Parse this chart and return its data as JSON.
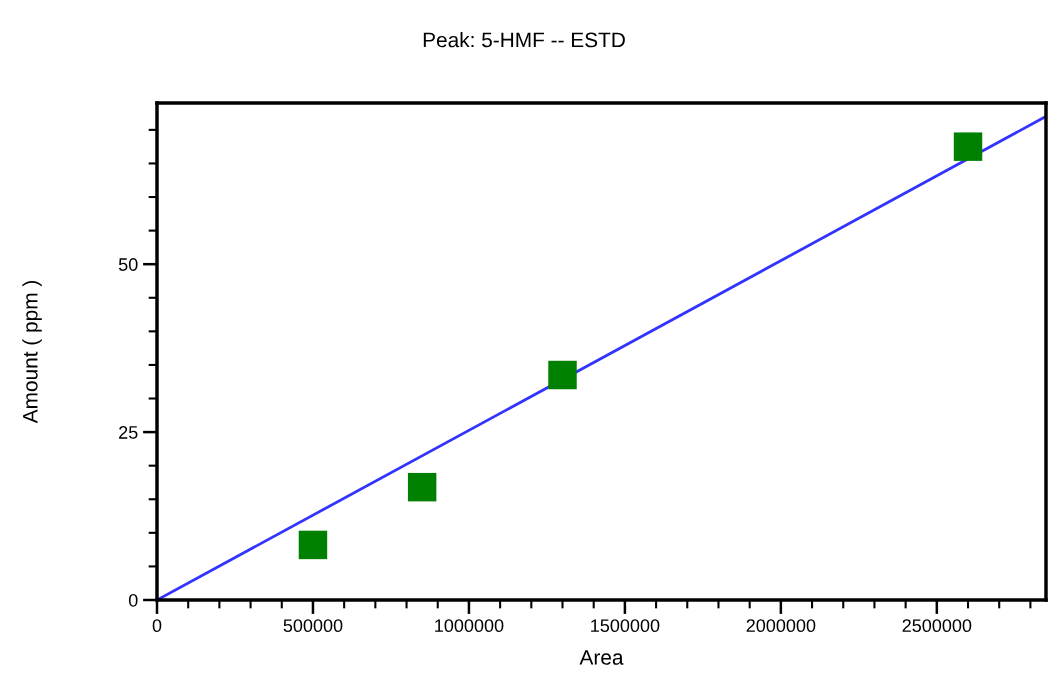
{
  "chart_data": {
    "type": "scatter",
    "title": "Peak: 5-HMF -- ESTD",
    "xlabel": "Area",
    "ylabel": "Amount ( ppm )",
    "series": [
      {
        "color": "#008000",
        "marker": "square",
        "x": [
          500000,
          850000,
          1300000,
          2600000
        ],
        "values": [
          8.2,
          16.8,
          33.5,
          67.5
        ]
      },
      {
        "type": "line",
        "color": "#3333ff",
        "marker": "none",
        "line_style": "solid",
        "x": [
          0,
          2850000
        ],
        "values": [
          0,
          72
        ]
      }
    ],
    "xlim": [
      0,
      2850000
    ],
    "ylim": [
      0,
      74
    ],
    "xticks": [
      0,
      {
        "value": 100000,
        "label": null
      },
      {
        "value": 200000,
        "label": null
      },
      {
        "value": 300000,
        "label": null
      },
      {
        "value": 400000,
        "label": null
      },
      500000,
      {
        "value": 600000,
        "label": null
      },
      {
        "value": 700000,
        "label": null
      },
      {
        "value": 800000,
        "label": null
      },
      {
        "value": 900000,
        "label": null
      },
      1000000,
      {
        "value": 1100000,
        "label": null
      },
      {
        "value": 1200000,
        "label": null
      },
      {
        "value": 1300000,
        "label": null
      },
      {
        "value": 1400000,
        "label": null
      },
      1500000,
      {
        "value": 1600000,
        "label": null
      },
      {
        "value": 1700000,
        "label": null
      },
      {
        "value": 1800000,
        "label": null
      },
      {
        "value": 1900000,
        "label": null
      },
      2000000,
      {
        "value": 2100000,
        "label": null
      },
      {
        "value": 2200000,
        "label": null
      },
      {
        "value": 2300000,
        "label": null
      },
      {
        "value": 2400000,
        "label": null
      },
      2500000,
      {
        "value": 2600000,
        "label": null
      },
      {
        "value": 2700000,
        "label": null
      },
      {
        "value": 2800000,
        "label": null
      }
    ],
    "yticks": [
      0,
      {
        "value": 5,
        "label": null
      },
      {
        "value": 10,
        "label": null
      },
      {
        "value": 15,
        "label": null
      },
      {
        "value": 20,
        "label": null
      },
      25,
      {
        "value": 30,
        "label": null
      },
      {
        "value": 35,
        "label": null
      },
      {
        "value": 40,
        "label": null
      },
      {
        "value": 45,
        "label": null
      },
      50,
      {
        "value": 55,
        "label": null
      },
      {
        "value": 60,
        "label": null
      },
      {
        "value": 65,
        "label": null
      },
      {
        "value": 70,
        "label": null
      }
    ],
    "grid": false,
    "legend": false
  }
}
